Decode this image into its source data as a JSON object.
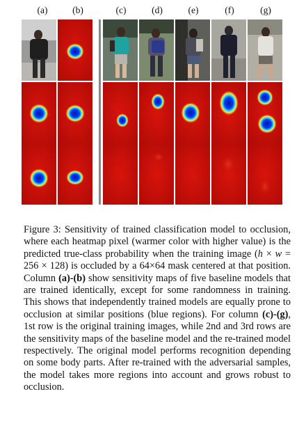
{
  "columns": [
    "(a)",
    "(b)",
    "(c)",
    "(d)",
    "(e)",
    "(f)",
    "(g)"
  ],
  "caption": {
    "label": "Figure 3:",
    "text_1": "Sensitivity of trained classification model to occlusion, where each heatmap pixel (warmer color with higher value) is the predicted true-class probability when the training image (",
    "math_1a": "h",
    "math_times": "×",
    "math_1b": "w",
    "math_eq": "=",
    "math_1c": "256 × 128",
    "text_2": ") is occluded by a",
    "math_2": "64×64",
    "text_3": "mask centered at that position. Column",
    "bold_1": "(a)-(b)",
    "text_4": "show sensitivity maps of five baseline models that are trained identically, except for some randomness in training. This shows that independently trained models are equally prone to occlusion at similar positions (blue regions). For column",
    "bold_2": "(c)-(g)",
    "text_5": ", 1st row is the original training images, while 2nd and 3rd rows are the sensitivity maps of the baseline model and the re-trained model respectively. The original model performs recognition depending on some body parts. After re-trained with the adversarial samples, the model takes more regions into account and grows robust to occlusion."
  }
}
